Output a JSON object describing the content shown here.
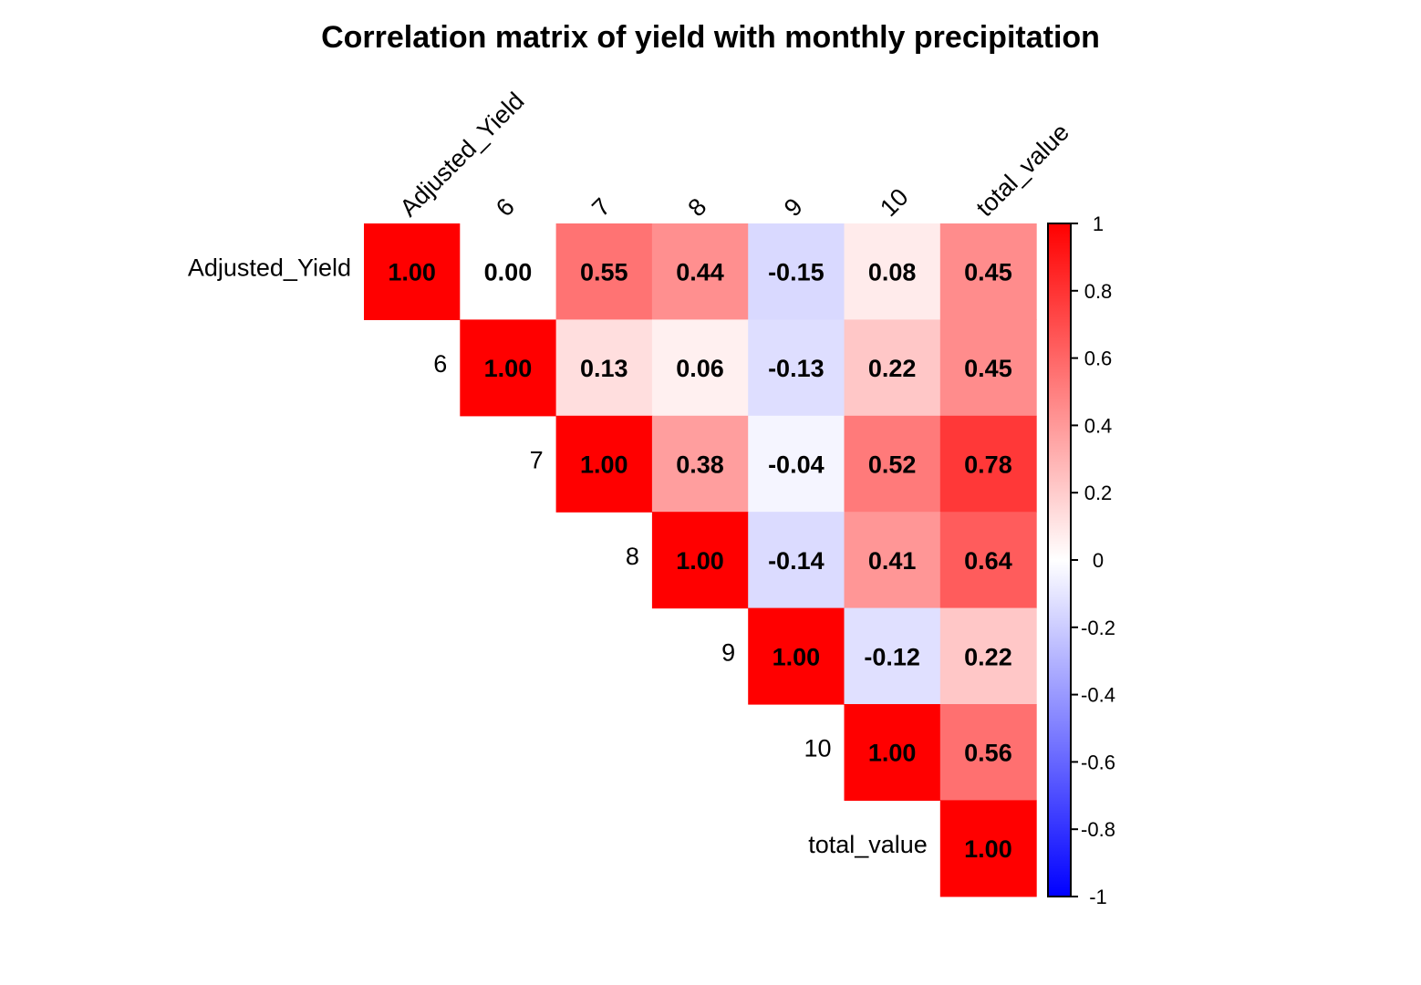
{
  "chart_data": {
    "type": "heatmap",
    "title": "Correlation matrix of yield with  monthly precipitation",
    "variables": [
      "Adjusted_Yield",
      "6",
      "7",
      "8",
      "9",
      "10",
      "total_value"
    ],
    "layout": "upper-triangle",
    "matrix": [
      [
        "1.00",
        "0.00",
        "0.55",
        "0.44",
        "-0.15",
        "0.08",
        "0.45"
      ],
      [
        null,
        "1.00",
        "0.13",
        "0.06",
        "-0.13",
        "0.22",
        "0.45"
      ],
      [
        null,
        null,
        "1.00",
        "0.38",
        "-0.04",
        "0.52",
        "0.78"
      ],
      [
        null,
        null,
        null,
        "1.00",
        "-0.14",
        "0.41",
        "0.64"
      ],
      [
        null,
        null,
        null,
        null,
        "1.00",
        "-0.12",
        "0.22"
      ],
      [
        null,
        null,
        null,
        null,
        null,
        "1.00",
        "0.56"
      ],
      [
        null,
        null,
        null,
        null,
        null,
        null,
        "1.00"
      ]
    ],
    "color_scale": {
      "min": -1,
      "max": 1,
      "low_color": "#0000ff",
      "mid_color": "#ffffff",
      "high_color": "#ff0000",
      "ticks": [
        "1",
        "0.8",
        "0.6",
        "0.4",
        "0.2",
        "0",
        "-0.2",
        "-0.4",
        "-0.6",
        "-0.8",
        "-1"
      ]
    },
    "legend_position": "right"
  }
}
